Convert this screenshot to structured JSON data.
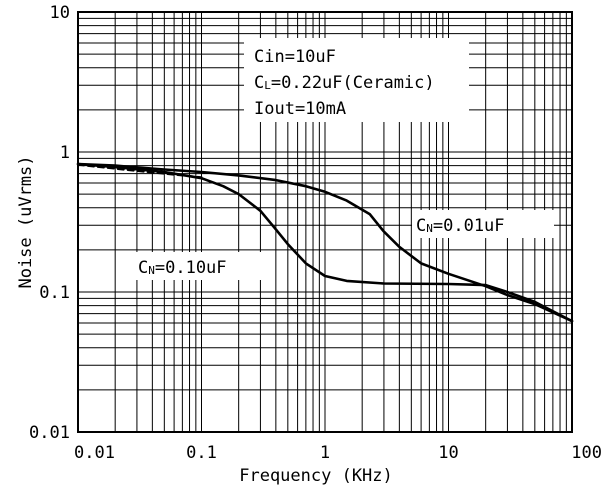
{
  "chart_data": {
    "type": "line",
    "title": "",
    "xlabel": "Frequency (KHz)",
    "ylabel": "Noise (uVrms)",
    "x_scale": "log",
    "y_scale": "log",
    "xlim": [
      0.01,
      100
    ],
    "ylim": [
      0.01,
      10
    ],
    "grid": true,
    "x_ticks": [
      "0.01",
      "0.1",
      "1",
      "10",
      "100"
    ],
    "y_ticks": [
      "10",
      "1",
      "0.1",
      "0.01"
    ],
    "conditions": {
      "line1": "Cin=10uF",
      "line2_main": "C",
      "line2_sub": "L",
      "line2_rest": "=0.22uF(Ceramic)",
      "line3": "Iout=10mA"
    },
    "series": [
      {
        "name": "CN=0.01uF",
        "label_main": "C",
        "label_sub": "N",
        "label_rest": "=0.01uF",
        "x": [
          0.01,
          0.02,
          0.05,
          0.1,
          0.2,
          0.4,
          0.7,
          1,
          1.5,
          2.3,
          3,
          4,
          6,
          10,
          20,
          30,
          50,
          100
        ],
        "y": [
          0.82,
          0.8,
          0.75,
          0.72,
          0.68,
          0.63,
          0.57,
          0.52,
          0.45,
          0.36,
          0.27,
          0.21,
          0.16,
          0.135,
          0.11,
          0.095,
          0.082,
          0.062
        ]
      },
      {
        "name": "CN=0.10uF",
        "label_main": "C",
        "label_sub": "N",
        "label_rest": "=0.10uF",
        "x": [
          0.01,
          0.02,
          0.05,
          0.1,
          0.15,
          0.2,
          0.3,
          0.4,
          0.5,
          0.7,
          1,
          1.5,
          3,
          10,
          20,
          30,
          50,
          100
        ],
        "y": [
          0.82,
          0.78,
          0.72,
          0.65,
          0.57,
          0.5,
          0.38,
          0.28,
          0.22,
          0.16,
          0.13,
          0.12,
          0.115,
          0.114,
          0.112,
          0.1,
          0.085,
          0.062
        ]
      }
    ],
    "dashed_segment": {
      "x": [
        0.01,
        0.02,
        0.05,
        0.1
      ],
      "y": [
        0.81,
        0.76,
        0.7,
        0.66
      ]
    }
  }
}
